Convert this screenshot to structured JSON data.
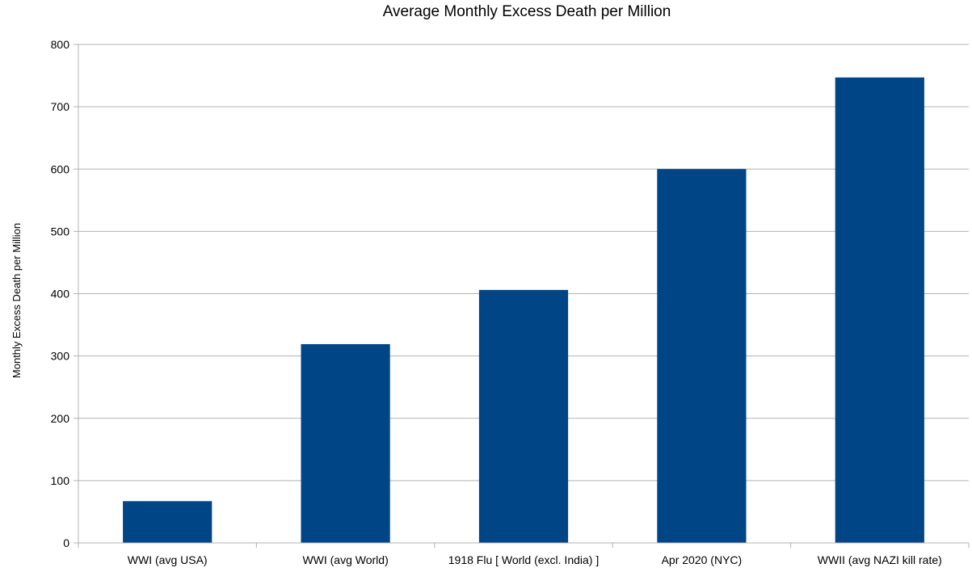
{
  "chart_data": {
    "type": "bar",
    "title": "Average Monthly Excess Death per Million",
    "xlabel": "",
    "ylabel": "Monthly Excess Death per Million",
    "categories": [
      "WWI (avg USA)",
      "WWI (avg World)",
      "1918 Flu [ World (excl. India) ]",
      "Apr 2020 (NYC)",
      "WWII (avg NAZI kill rate)"
    ],
    "values": [
      67,
      319,
      406,
      600,
      747
    ],
    "ylim": [
      0,
      800
    ],
    "yticks": [
      0,
      100,
      200,
      300,
      400,
      500,
      600,
      700,
      800
    ],
    "grid": true,
    "legend": "none",
    "colors": {
      "bar": "#004586",
      "grid": "#b3b3b3",
      "axis": "#b3b3b3"
    }
  }
}
